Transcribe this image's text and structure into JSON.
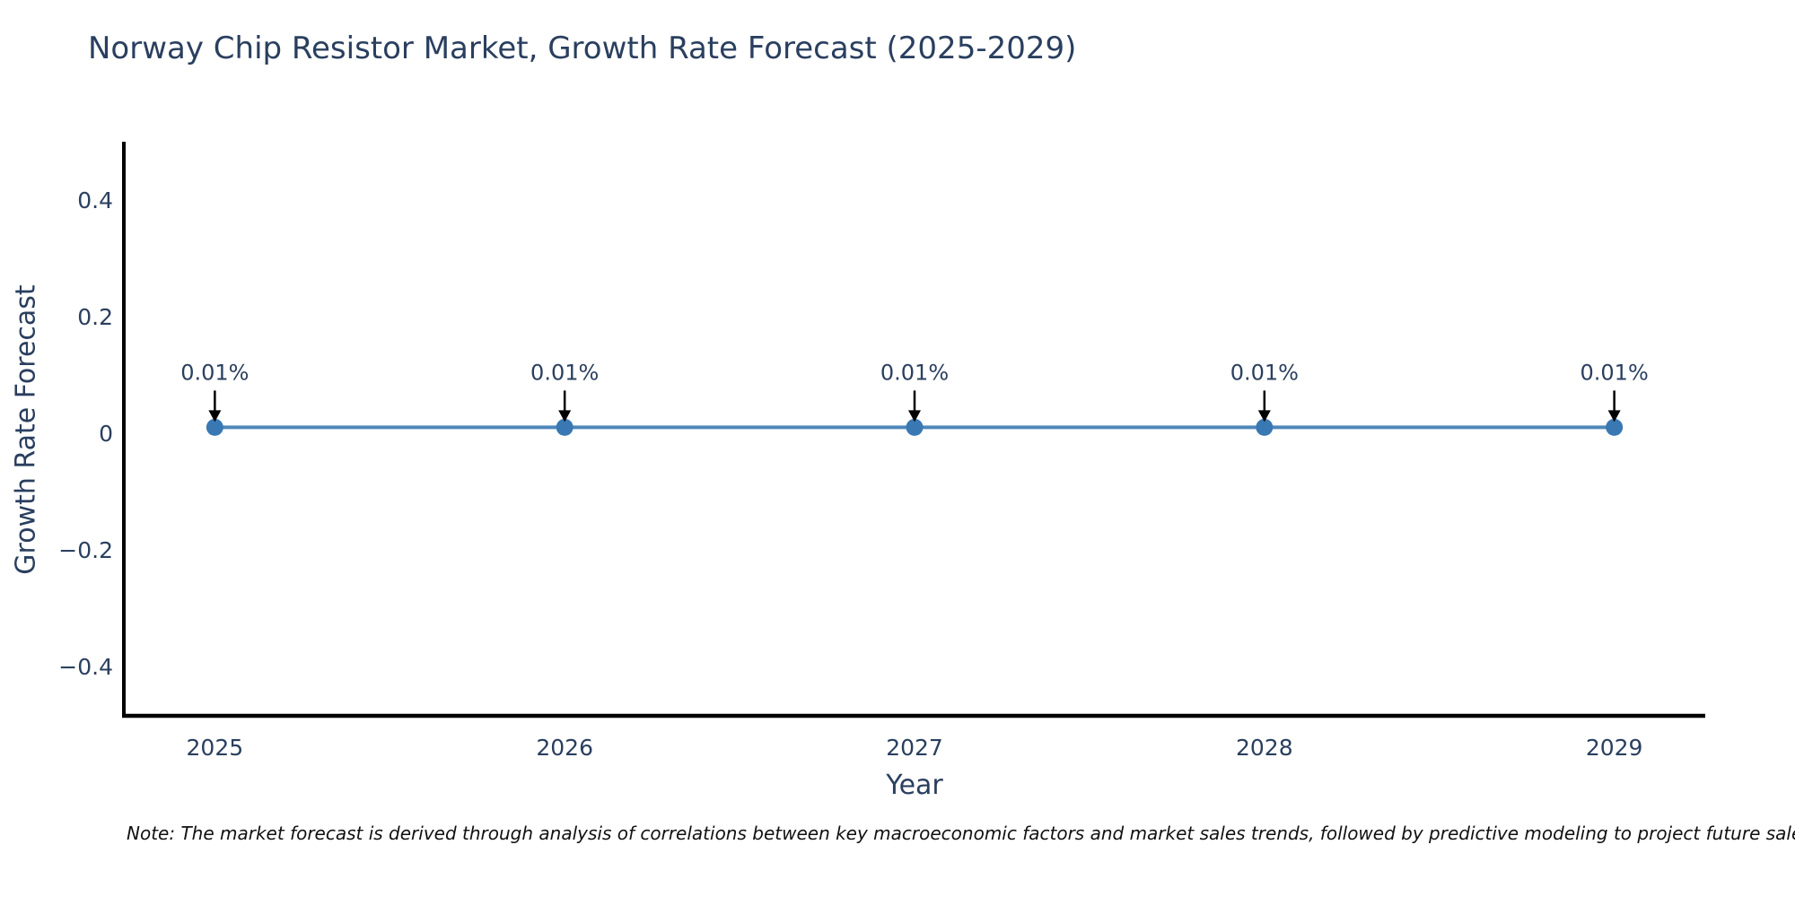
{
  "title": "Norway Chip Resistor Market, Growth Rate Forecast (2025-2029)",
  "note": "Note: The market forecast is derived through analysis of correlations between key macroeconomic factors and market sales trends, followed by predictive modeling to project future sales.",
  "chart_data": {
    "type": "line",
    "title": "Norway Chip Resistor Market, Growth Rate Forecast (2025-2029)",
    "xlabel": "Year",
    "ylabel": "Growth Rate Forecast",
    "x": [
      2025,
      2026,
      2027,
      2028,
      2029
    ],
    "xtick_labels": [
      "2025",
      "2026",
      "2027",
      "2028",
      "2029"
    ],
    "series": [
      {
        "name": "Growth Rate Forecast",
        "values": [
          0.01,
          0.01,
          0.01,
          0.01,
          0.01
        ]
      }
    ],
    "point_labels": [
      "0.01%",
      "0.01%",
      "0.01%",
      "0.01%",
      "0.01%"
    ],
    "yticks": [
      0.4,
      0.2,
      0,
      -0.2,
      -0.4
    ],
    "ytick_labels": [
      "0.4",
      "0.2",
      "0",
      "−0.2",
      "−0.4"
    ],
    "ylim": [
      -0.485,
      0.497
    ],
    "xlim": [
      2024.74,
      2029.26
    ],
    "grid": false,
    "legend_position": "none",
    "colors": {
      "line": "#4e87b9",
      "marker": "#3a78b3",
      "axis": "#000000",
      "tick_text": "#2a3f5f",
      "annotation_text": "#2a3f5f",
      "arrow": "#000000",
      "title_text": "#2a3f5f",
      "note_text": "#111111"
    }
  }
}
